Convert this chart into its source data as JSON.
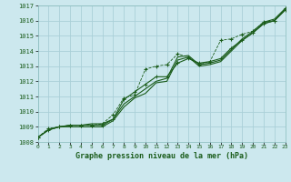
{
  "title": "Graphe pression niveau de la mer (hPa)",
  "bg_color": "#cce8ee",
  "grid_color": "#aad0d8",
  "line_color": "#1a5c1a",
  "ylim": [
    1008,
    1017
  ],
  "xlim": [
    0,
    23
  ],
  "yticks": [
    1008,
    1009,
    1010,
    1011,
    1012,
    1013,
    1014,
    1015,
    1016,
    1017
  ],
  "xticks": [
    0,
    1,
    2,
    3,
    4,
    5,
    6,
    7,
    8,
    9,
    10,
    11,
    12,
    13,
    14,
    15,
    16,
    17,
    18,
    19,
    20,
    21,
    22,
    23
  ],
  "series1": [
    1008.3,
    1008.8,
    1009.0,
    1009.1,
    1009.1,
    1009.2,
    1009.2,
    1009.5,
    1010.5,
    1011.0,
    1011.5,
    1012.0,
    1012.2,
    1013.6,
    1013.7,
    1013.1,
    1013.2,
    1013.4,
    1014.1,
    1014.8,
    1015.3,
    1015.9,
    1016.1,
    1016.8
  ],
  "series2": [
    1008.3,
    1008.8,
    1009.0,
    1009.1,
    1009.1,
    1009.1,
    1009.1,
    1009.5,
    1010.8,
    1011.3,
    1011.8,
    1012.3,
    1012.3,
    1013.2,
    1013.5,
    1013.2,
    1013.3,
    1013.5,
    1014.2,
    1014.7,
    1015.2,
    1015.8,
    1016.0,
    1016.7
  ],
  "series3": [
    1008.3,
    1008.8,
    1009.0,
    1009.0,
    1009.0,
    1009.0,
    1009.0,
    1009.4,
    1010.3,
    1010.9,
    1011.2,
    1011.9,
    1012.0,
    1013.4,
    1013.6,
    1013.0,
    1013.1,
    1013.3,
    1014.0,
    1014.7,
    1015.2,
    1015.8,
    1016.0,
    1016.7
  ],
  "series4": [
    1008.3,
    1008.9,
    1009.0,
    1009.1,
    1009.1,
    1009.1,
    1009.2,
    1009.8,
    1010.9,
    1011.1,
    1012.8,
    1013.0,
    1013.1,
    1013.8,
    1013.6,
    1013.1,
    1013.3,
    1014.7,
    1014.8,
    1015.1,
    1015.3,
    1015.9,
    1016.0,
    1016.8
  ]
}
